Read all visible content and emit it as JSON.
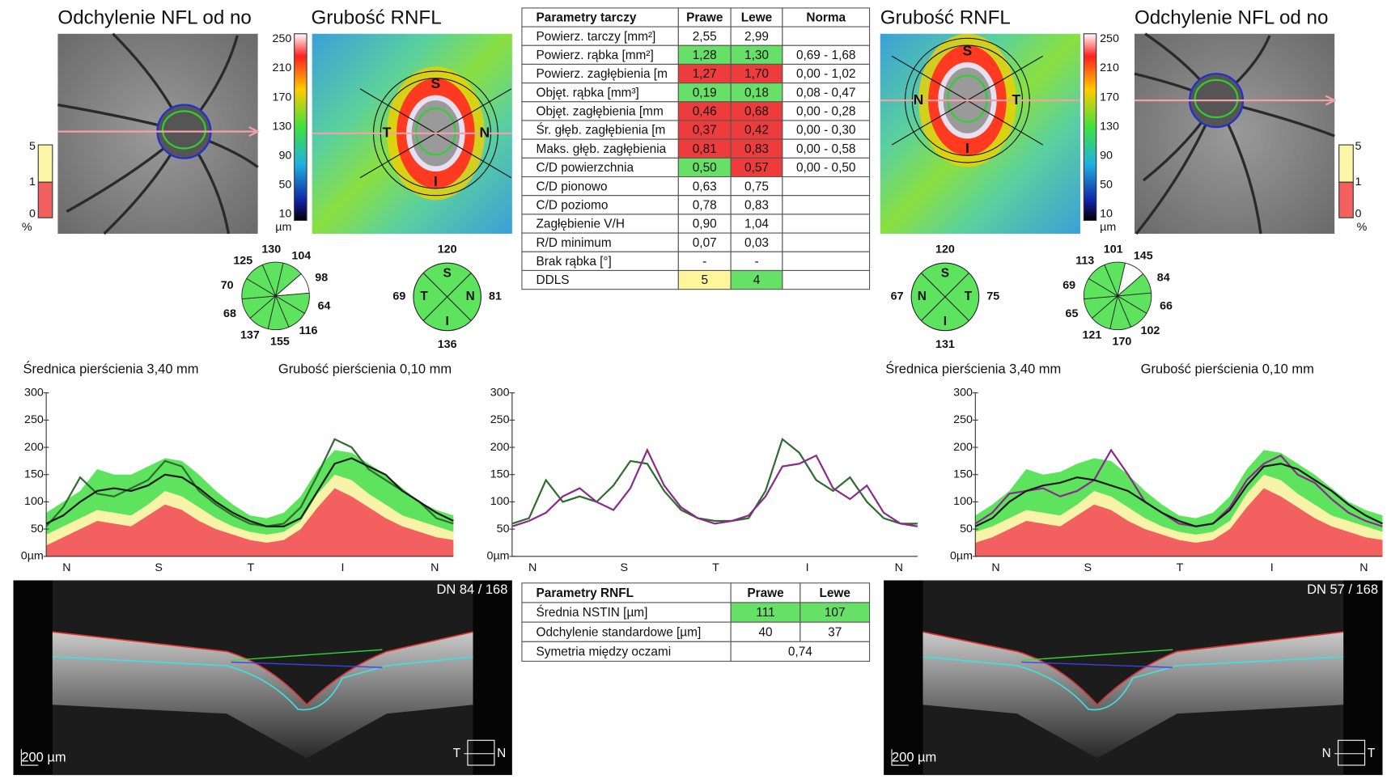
{
  "maps": [
    {
      "deviation_title": "Odchylenie NFL od no",
      "thickness_title": "Grubość RNFL",
      "letters": [
        "S",
        "T",
        "N",
        "I"
      ],
      "clock": {
        "values": [
          130,
          104,
          98,
          64,
          116,
          155,
          137,
          68,
          70,
          125
        ],
        "colors": [
          "#5ee35e",
          "#5ee35e",
          "#ffffff",
          "#5ee35e",
          "#5ee35e",
          "#5ee35e",
          "#5ee35e",
          "#5ee35e",
          "#5ee35e",
          "#5ee35e"
        ]
      },
      "quadrants": [
        120,
        69,
        81,
        136
      ]
    },
    {
      "deviation_title": "Odchylenie NFL od no",
      "thickness_title": "Grubość RNFL",
      "letters": [
        "S",
        "N",
        "T",
        "I"
      ],
      "clock": {
        "values": [
          101,
          145,
          84,
          66,
          102,
          170,
          121,
          65,
          69,
          113
        ],
        "colors": [
          "#5ee35e",
          "#ffffff",
          "#5ee35e",
          "#5ee35e",
          "#5ee35e",
          "#5ee35e",
          "#5ee35e",
          "#5ee35e",
          "#5ee35e",
          "#5ee35e"
        ]
      },
      "quadrants": [
        120,
        67,
        75,
        131
      ]
    }
  ],
  "scale": {
    "thickness": [
      250,
      210,
      170,
      130,
      90,
      50,
      10
    ],
    "thickness_unit": "µm",
    "deviation": [
      5,
      1,
      0
    ],
    "deviation_unit": "%"
  },
  "disc_table": {
    "header": [
      "Parametry tarczy",
      "Prawe",
      "Lewe",
      "Norma"
    ],
    "rows": [
      {
        "cells": [
          "Powierz. tarczy [mm²]",
          "2,55",
          "2,99"
        ]
      },
      {
        "cells": [
          "Powierz. rąbka [mm²]",
          "1,28",
          "1,30",
          "0,69 - 1,68"
        ],
        "colors": [
          null,
          "#66e066",
          "#66e066",
          null
        ]
      },
      {
        "cells": [
          "Powierz. zagłębienia [m",
          "1,27",
          "1,70",
          "0,00 - 1,02"
        ],
        "colors": [
          null,
          "#ee3b3b",
          "#ee3b3b",
          null
        ]
      },
      {
        "cells": [
          "Objęt. rąbka [mm³]",
          "0,19",
          "0,18",
          "0,08 - 0,47"
        ],
        "colors": [
          null,
          "#66e066",
          "#66e066",
          null
        ]
      },
      {
        "cells": [
          "Objęt. zagłębienia [mm",
          "0,46",
          "0,68",
          "0,00 - 0,28"
        ],
        "colors": [
          null,
          "#ee3b3b",
          "#ee3b3b",
          null
        ]
      },
      {
        "cells": [
          "Śr. głęb. zagłębienia [m",
          "0,37",
          "0,42",
          "0,00 - 0,30"
        ],
        "colors": [
          null,
          "#ee3b3b",
          "#ee3b3b",
          null
        ]
      },
      {
        "cells": [
          "Maks. głęb. zagłębienia",
          "0,81",
          "0,83",
          "0,00 - 0,58"
        ],
        "colors": [
          null,
          "#ee3b3b",
          "#ee3b3b",
          null
        ]
      },
      {
        "cells": [
          "C/D powierzchnia",
          "0,50",
          "0,57",
          "0,00 - 0,50"
        ],
        "colors": [
          null,
          "#66e066",
          "#ee3b3b",
          null
        ]
      },
      {
        "cells": [
          "C/D pionowo",
          "0,63",
          "0,75"
        ]
      },
      {
        "cells": [
          "C/D poziomo",
          "0,78",
          "0,83"
        ]
      },
      {
        "cells": [
          "Zagłębienie V/H",
          "0,90",
          "1,04"
        ]
      },
      {
        "cells": [
          "R/D minimum",
          "0,07",
          "0,03"
        ]
      },
      {
        "cells": [
          "Brak rąbka [°]",
          "-",
          "-"
        ]
      },
      {
        "cells": [
          "DDLS",
          "5",
          "4"
        ],
        "colors": [
          null,
          "#fff59a",
          "#66e066"
        ]
      }
    ]
  },
  "rnfl_table": {
    "header": [
      "Parametry RNFL",
      "Prawe",
      "Lewe"
    ],
    "rows": [
      {
        "cells": [
          "Średnia NSTIN [µm]",
          "111",
          "107"
        ],
        "colors": [
          null,
          "#66e066",
          "#66e066"
        ]
      },
      {
        "cells": [
          "Odchylenie standardowe [µm]",
          "40",
          "37"
        ]
      },
      {
        "cells": [
          "Symetria między oczami",
          "0,74"
        ]
      }
    ]
  },
  "graph_notes": [
    "Średnica pierścienia 3,40 mm",
    "Grubość pierścienia 0,10 mm"
  ],
  "profile_axis": {
    "ylim": [
      0,
      300
    ],
    "yticks": [
      300,
      250,
      200,
      150,
      100,
      50,
      {
        "value": 0,
        "label": "0µm"
      }
    ],
    "xlabels": [
      "N",
      "S",
      "T",
      "I",
      "N"
    ]
  },
  "profiles": [
    {
      "bands": [
        {
          "color": "#5ee35e",
          "values": [
            80,
            100,
            120,
            160,
            150,
            150,
            165,
            180,
            175,
            150,
            120,
            95,
            75,
            70,
            80,
            110,
            160,
            195,
            190,
            170,
            150,
            125,
            100,
            85,
            75
          ]
        },
        {
          "color": "#f7f3a8",
          "values": [
            40,
            55,
            70,
            85,
            80,
            75,
            95,
            120,
            110,
            90,
            70,
            55,
            45,
            40,
            45,
            65,
            115,
            150,
            140,
            115,
            95,
            75,
            65,
            55,
            45
          ]
        },
        {
          "color": "#f26060",
          "values": [
            20,
            35,
            50,
            65,
            60,
            55,
            75,
            95,
            85,
            65,
            50,
            40,
            30,
            25,
            30,
            50,
            90,
            125,
            110,
            90,
            70,
            55,
            45,
            35,
            30
          ]
        }
      ],
      "series": [
        {
          "color": "#2e6b2e",
          "values": [
            55,
            90,
            145,
            115,
            110,
            125,
            140,
            175,
            165,
            120,
            95,
            75,
            60,
            55,
            60,
            90,
            150,
            215,
            200,
            160,
            140,
            120,
            100,
            70,
            60
          ]
        },
        {
          "color": "#1a1a1a",
          "values": [
            60,
            75,
            100,
            120,
            125,
            120,
            130,
            150,
            145,
            125,
            100,
            80,
            65,
            55,
            55,
            70,
            120,
            170,
            180,
            165,
            150,
            120,
            100,
            80,
            65
          ]
        }
      ]
    },
    {
      "series": [
        {
          "color": "#2e6b2e",
          "values": [
            60,
            70,
            140,
            100,
            110,
            100,
            130,
            175,
            170,
            120,
            85,
            70,
            65,
            65,
            70,
            120,
            215,
            190,
            140,
            120,
            145,
            100,
            70,
            60,
            60
          ]
        },
        {
          "color": "#8a2a8a",
          "values": [
            55,
            65,
            80,
            110,
            125,
            100,
            85,
            125,
            195,
            130,
            90,
            70,
            60,
            65,
            75,
            110,
            165,
            170,
            185,
            125,
            105,
            130,
            80,
            60,
            55
          ]
        }
      ]
    },
    {
      "bands": [
        {
          "color": "#5ee35e",
          "values": [
            75,
            95,
            120,
            160,
            150,
            155,
            170,
            180,
            175,
            150,
            120,
            95,
            75,
            70,
            80,
            110,
            160,
            195,
            190,
            170,
            150,
            125,
            100,
            85,
            75
          ]
        },
        {
          "color": "#f7f3a8",
          "values": [
            45,
            55,
            70,
            85,
            80,
            75,
            95,
            120,
            110,
            90,
            70,
            55,
            45,
            40,
            45,
            65,
            115,
            150,
            140,
            115,
            95,
            75,
            65,
            55,
            45
          ]
        },
        {
          "color": "#f26060",
          "values": [
            25,
            35,
            50,
            65,
            60,
            55,
            75,
            95,
            85,
            65,
            50,
            40,
            30,
            25,
            30,
            50,
            90,
            125,
            110,
            90,
            70,
            55,
            45,
            35,
            30
          ]
        }
      ],
      "series": [
        {
          "color": "#8a2a8a",
          "values": [
            60,
            80,
            115,
            120,
            125,
            110,
            120,
            140,
            195,
            150,
            100,
            80,
            60,
            55,
            60,
            90,
            140,
            170,
            185,
            150,
            135,
            105,
            80,
            65,
            55
          ]
        },
        {
          "color": "#1a1a1a",
          "values": [
            55,
            70,
            100,
            120,
            130,
            135,
            145,
            140,
            130,
            120,
            100,
            80,
            65,
            55,
            60,
            85,
            130,
            165,
            170,
            160,
            140,
            120,
            95,
            75,
            60
          ]
        }
      ]
    }
  ],
  "oct": [
    {
      "dn": "DN  84 / 168",
      "scale_bar": "200 µm",
      "orientation": [
        "T",
        "N"
      ]
    },
    {
      "dn": "DN  57 / 168",
      "scale_bar": "200 µm",
      "orientation": [
        "N",
        "T"
      ]
    }
  ]
}
